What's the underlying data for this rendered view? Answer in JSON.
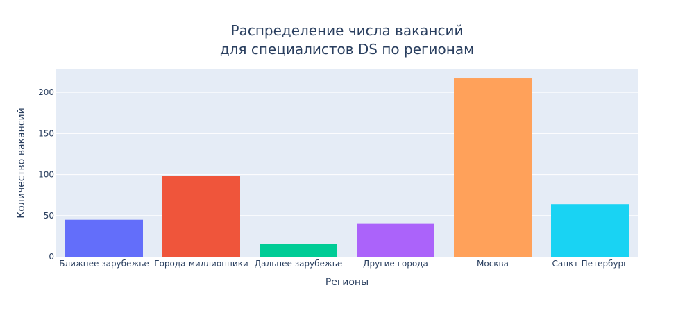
{
  "chart_data": {
    "type": "bar",
    "title": [
      "Распределение числа вакансий",
      "для специалистов DS по регионам"
    ],
    "xlabel": "Регионы",
    "ylabel": "Количество вакансий",
    "categories": [
      "Ближнее зарубежье",
      "Города-миллионники",
      "Дальнее зарубежье",
      "Другие города",
      "Москва",
      "Санкт-Петербург"
    ],
    "values": [
      45,
      98,
      16,
      40,
      217,
      64
    ],
    "colors": [
      "#636efa",
      "#ef553b",
      "#00cc96",
      "#ab63fa",
      "#ffa15a",
      "#19d3f3"
    ],
    "ylim": [
      0,
      228
    ],
    "yticks": [
      0,
      50,
      100,
      150,
      200
    ],
    "grid": true,
    "legend": "none",
    "plot_background": "#e5ecf6"
  }
}
